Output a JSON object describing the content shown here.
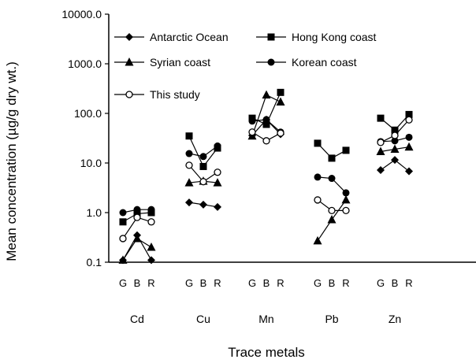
{
  "chart_data": {
    "type": "line",
    "ylabel": "Mean concentration (µg/g dry wt.)",
    "xlabel": "Trace metals",
    "yscale": "log",
    "ylim": [
      0.1,
      10000
    ],
    "yticks": [
      "0.1",
      "1.0",
      "10.0",
      "100.0",
      "1000.0",
      "10000.0"
    ],
    "ytick_values": [
      0.1,
      1,
      10,
      100,
      1000,
      10000
    ],
    "groups": [
      "Cd",
      "Cu",
      "Mn",
      "Pb",
      "Zn"
    ],
    "sub_categories": [
      "G",
      "B",
      "R"
    ],
    "legend_position": "top",
    "grid": false,
    "series": [
      {
        "name": "Antarctic Ocean",
        "marker": "diamond-filled",
        "values": [
          [
            0.11,
            0.35,
            0.11
          ],
          [
            1.6,
            1.45,
            1.3
          ],
          [
            36,
            75,
            38
          ],
          [
            null,
            null,
            null
          ],
          [
            7.2,
            11.5,
            6.8
          ]
        ]
      },
      {
        "name": "Hong Kong coast",
        "marker": "square-filled",
        "values": [
          [
            0.65,
            0.95,
            1.0
          ],
          [
            35,
            8.5,
            20
          ],
          [
            80,
            60,
            265
          ],
          [
            25,
            12.5,
            18
          ],
          [
            80,
            46,
            95
          ]
        ]
      },
      {
        "name": "Syrian coast",
        "marker": "triangle-filled",
        "values": [
          [
            0.11,
            0.3,
            0.2
          ],
          [
            4.0,
            4.3,
            4.0
          ],
          [
            35,
            235,
            170
          ],
          [
            0.27,
            0.72,
            1.8
          ],
          [
            17,
            19,
            21
          ]
        ]
      },
      {
        "name": "Korean coast",
        "marker": "circle-filled",
        "values": [
          [
            1.0,
            1.15,
            1.15
          ],
          [
            15.5,
            13.5,
            22
          ],
          [
            70,
            75,
            42
          ],
          [
            5.2,
            4.9,
            2.5
          ],
          [
            27,
            28,
            33
          ]
        ]
      },
      {
        "name": "This study",
        "marker": "circle-open",
        "values": [
          [
            0.3,
            0.8,
            0.65
          ],
          [
            9,
            4.2,
            6.5
          ],
          [
            42,
            28,
            40
          ],
          [
            1.8,
            1.1,
            1.1
          ],
          [
            26,
            36,
            74
          ]
        ]
      }
    ]
  }
}
